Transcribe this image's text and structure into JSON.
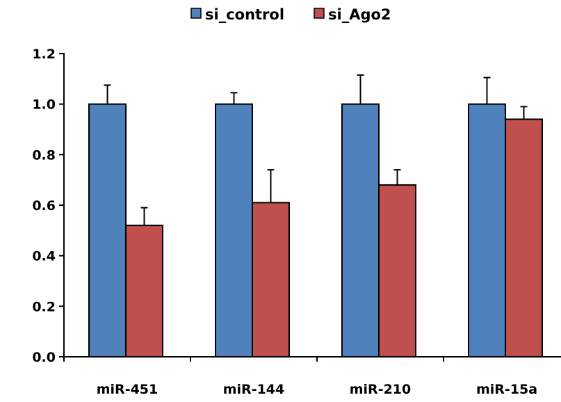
{
  "chart_data": {
    "type": "bar",
    "categories": [
      "miR-451",
      "miR-144",
      "miR-210",
      "miR-15a"
    ],
    "series": [
      {
        "name": "si_control",
        "color": "#4F81BD",
        "values": [
          1.0,
          1.0,
          1.0,
          1.0
        ],
        "errors": [
          0.075,
          0.045,
          0.115,
          0.105
        ]
      },
      {
        "name": "si_Ago2",
        "color": "#C0504D",
        "values": [
          0.52,
          0.61,
          0.68,
          0.94
        ],
        "errors": [
          0.07,
          0.13,
          0.06,
          0.05
        ]
      }
    ],
    "yticks": [
      "0.0",
      "0.2",
      "0.4",
      "0.6",
      "0.8",
      "1.0",
      "1.2"
    ],
    "ylim": [
      0,
      1.2
    ],
    "grid": false,
    "legend_position": "top",
    "title": "",
    "xlabel": "",
    "ylabel": ""
  }
}
